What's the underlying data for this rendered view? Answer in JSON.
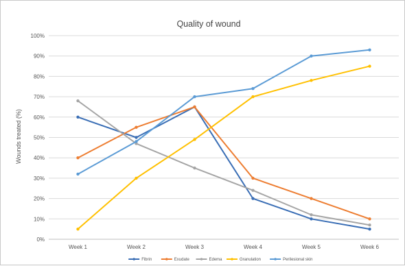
{
  "chart_data": {
    "type": "line",
    "title": "Quality of wound",
    "xlabel": "",
    "ylabel": "Wounds treated (%)",
    "categories": [
      "Week 1",
      "Week 2",
      "Week 3",
      "Week 4",
      "Week 5",
      "Week 6"
    ],
    "ylim": [
      0,
      100
    ],
    "yticks": [
      "0%",
      "10%",
      "20%",
      "30%",
      "40%",
      "50%",
      "60%",
      "70%",
      "80%",
      "90%",
      "100%"
    ],
    "grid": true,
    "legend": "bottom",
    "series": [
      {
        "name": "Fibrin",
        "color": "#3a6eb5",
        "values": [
          60,
          50,
          65,
          20,
          10,
          5
        ]
      },
      {
        "name": "Exudate",
        "color": "#ed7d31",
        "values": [
          40,
          55,
          65,
          30,
          20,
          10
        ]
      },
      {
        "name": "Edema",
        "color": "#a5a5a5",
        "values": [
          68,
          47,
          35,
          24,
          12,
          7
        ]
      },
      {
        "name": "Granulation",
        "color": "#ffc000",
        "values": [
          5,
          30,
          49,
          70,
          78,
          85
        ]
      },
      {
        "name": "Perilesional skin",
        "color": "#5b9bd5",
        "values": [
          32,
          48,
          70,
          74,
          90,
          93
        ]
      }
    ]
  }
}
